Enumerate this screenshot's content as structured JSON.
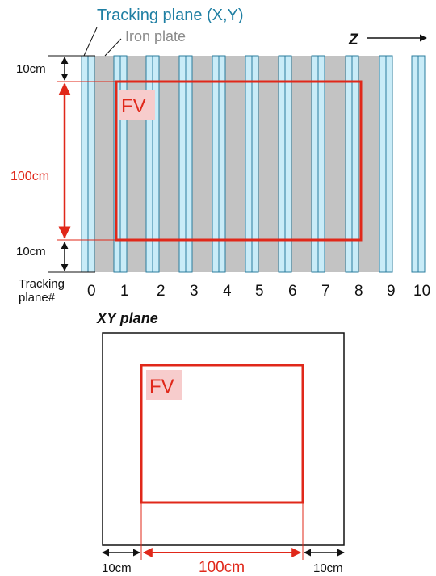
{
  "top_diagram": {
    "tracking_plane_label": "Tracking plane (X,Y)",
    "iron_plate_label": "Iron plate",
    "z_axis_label": "Z",
    "fv_label": "FV",
    "dim_top": "10cm",
    "dim_middle": "100cm",
    "dim_bottom": "10cm",
    "plane_caption_line1": "Tracking",
    "plane_caption_line2": "plane#",
    "plane_numbers": [
      "0",
      "1",
      "2",
      "3",
      "4",
      "5",
      "6",
      "7",
      "8",
      "9",
      "10"
    ]
  },
  "bottom_diagram": {
    "title": "XY plane",
    "fv_label": "FV",
    "dim_left": "10cm",
    "dim_middle": "100cm",
    "dim_right": "10cm"
  },
  "colors": {
    "tracking_plane": "#c9ecf8",
    "iron_plate": "#c3c3c3",
    "fiducial_volume": "#e0281a",
    "label_blue": "#1f7fa3"
  }
}
